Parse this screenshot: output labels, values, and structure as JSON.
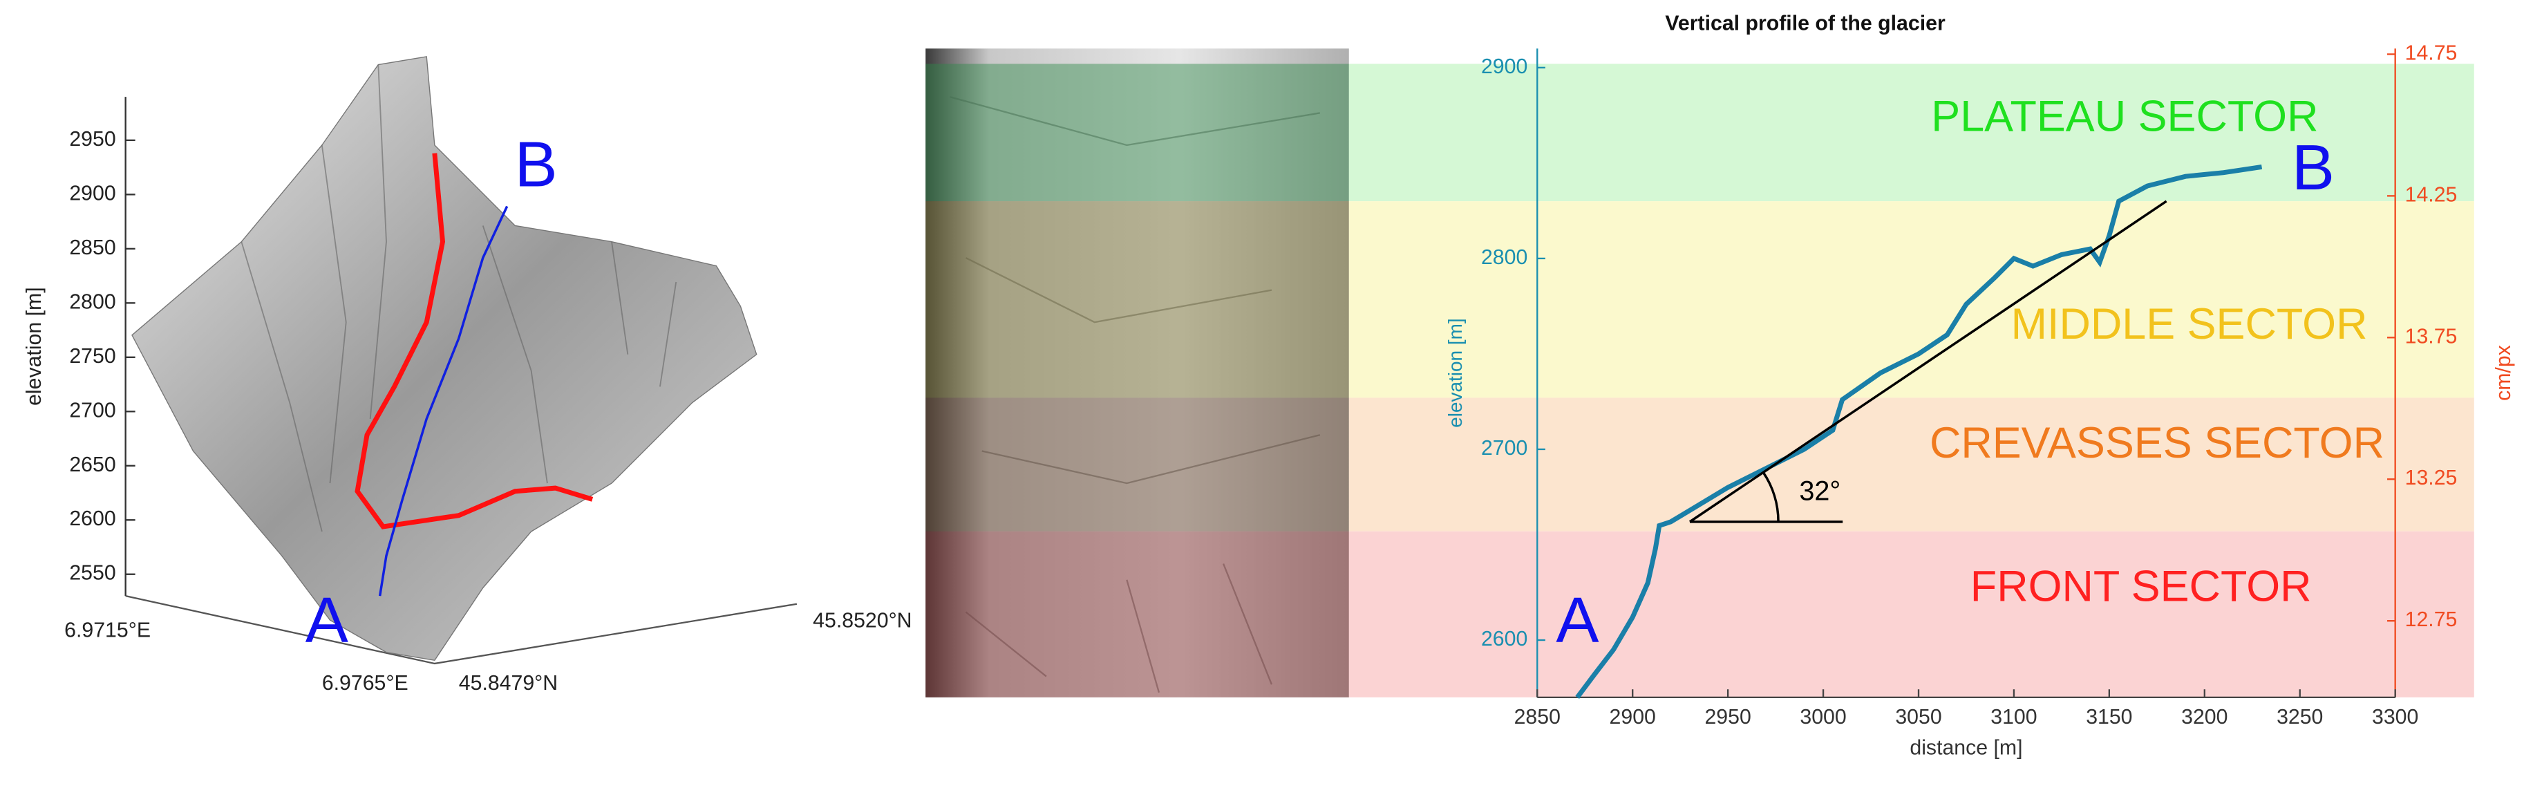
{
  "chart_data": [
    {
      "type": "surface",
      "ylabel": "elevation [m]",
      "zlim": [
        2530,
        2990
      ],
      "zticks": [
        2550,
        2600,
        2650,
        2700,
        2750,
        2800,
        2850,
        2900,
        2950
      ],
      "axis_labels": [
        "6.9715°E",
        "6.9765°E",
        "45.8479°N",
        "45.8520°N"
      ],
      "point_labels": [
        "A",
        "B"
      ]
    },
    {
      "type": "line",
      "title": "Vertical profile of the glacier",
      "xlabel": "distance [m]",
      "ylabel": "elevation [m]",
      "y2label": "cm/px",
      "xlim": [
        2850,
        3300
      ],
      "xticks": [
        2850,
        2900,
        2950,
        3000,
        3050,
        3100,
        3150,
        3200,
        3250,
        3300
      ],
      "ylim": [
        2570,
        2910
      ],
      "yticks": [
        2600,
        2700,
        2800,
        2900
      ],
      "y2lim": [
        12.48,
        14.77
      ],
      "y2ticks": [
        12.75,
        13.25,
        13.75,
        14.25,
        14.75
      ],
      "bands": [
        {
          "name": "PLATEAU SECTOR",
          "from": 2830,
          "to": 2902,
          "color": "#d5f8d5",
          "text_color": "#1fe01f",
          "photo_color": "#2f8a4a"
        },
        {
          "name": "MIDDLE SECTOR",
          "from": 2727,
          "to": 2830,
          "color": "#fbf9cd",
          "text_color": "#f2c21c",
          "photo_color": "#7d7430"
        },
        {
          "name": "CREVASSES SECTOR",
          "from": 2657,
          "to": 2727,
          "color": "#fce5cf",
          "text_color": "#f07a1e",
          "photo_color": "#6b4a30"
        },
        {
          "name": "FRONT SECTOR",
          "from": 2570,
          "to": 2657,
          "color": "#fbd3d3",
          "text_color": "#ff2020",
          "photo_color": "#8a3030"
        }
      ],
      "series": [
        {
          "color": "#1a7fa8",
          "x": [
            2871,
            2880,
            2890,
            2900,
            2908,
            2912,
            2914,
            2920,
            2930,
            2950,
            2970,
            2990,
            3005,
            3010,
            3030,
            3050,
            3065,
            3075,
            3090,
            3100,
            3110,
            3125,
            3140,
            3145,
            3150,
            3155,
            3170,
            3190,
            3210,
            3230
          ],
          "values": [
            2570,
            2582,
            2595,
            2612,
            2630,
            2648,
            2660,
            2662,
            2668,
            2680,
            2690,
            2700,
            2710,
            2726,
            2740,
            2750,
            2760,
            2776,
            2790,
            2800,
            2796,
            2802,
            2805,
            2798,
            2812,
            2830,
            2838,
            2843,
            2845,
            2848
          ]
        }
      ],
      "fit_line": {
        "color": "#000000",
        "x": [
          2930,
          3180
        ],
        "values": [
          2662,
          2830
        ]
      },
      "annotation": "32°",
      "point_labels": [
        "A",
        "B"
      ],
      "axis_color": "#1a8fb0",
      "axis2_color": "#f04a20"
    }
  ]
}
